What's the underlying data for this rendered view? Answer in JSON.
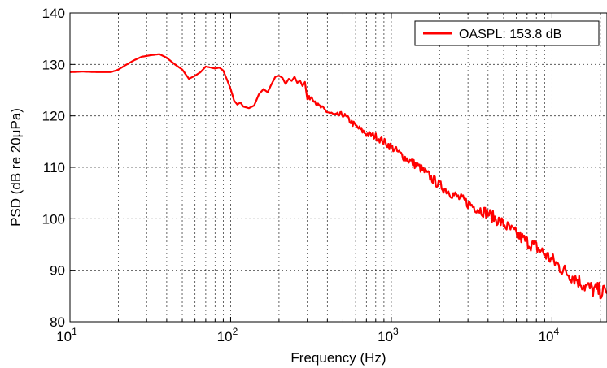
{
  "chart_data": {
    "type": "line",
    "xscale": "log",
    "xlim": [
      10,
      22000
    ],
    "ylim": [
      80,
      140
    ],
    "grid": true,
    "xlabel": "Frequency (Hz)",
    "ylabel": "PSD (dB re 20μPa)",
    "xticks": [
      10,
      100,
      1000,
      10000
    ],
    "xtick_labels": [
      {
        "base": "10",
        "exp": "1"
      },
      {
        "base": "10",
        "exp": "2"
      },
      {
        "base": "10",
        "exp": "3"
      },
      {
        "base": "10",
        "exp": "4"
      }
    ],
    "yticks": [
      80,
      90,
      100,
      110,
      120,
      130,
      140
    ],
    "ytick_labels": [
      "80",
      "90",
      "100",
      "110",
      "120",
      "130",
      "140"
    ],
    "legend_position": "top-right",
    "series": [
      {
        "name": "OASPL: 153.8 dB",
        "color": "#ff0000",
        "x": [
          10,
          12,
          15,
          18,
          20,
          22,
          25,
          28,
          32,
          36,
          40,
          45,
          50,
          55,
          60,
          65,
          70,
          75,
          80,
          85,
          90,
          95,
          100,
          105,
          110,
          115,
          120,
          130,
          140,
          150,
          160,
          170,
          180,
          190,
          200,
          210,
          220,
          230,
          240,
          250,
          260,
          270,
          280,
          290,
          300,
          320,
          350,
          400,
          450,
          500,
          600,
          700,
          800,
          1000,
          1200,
          1500,
          2000,
          2500,
          3000,
          4000,
          5000,
          6000,
          7000,
          8000,
          10000,
          12000,
          14000,
          16000,
          18000,
          20000,
          22000
        ],
        "y": [
          128.5,
          128.6,
          128.5,
          128.5,
          129.0,
          129.8,
          130.8,
          131.5,
          131.8,
          132.0,
          131.3,
          130.0,
          129.0,
          127.2,
          127.8,
          128.5,
          129.6,
          129.4,
          129.2,
          129.4,
          128.8,
          127.0,
          125.2,
          123.0,
          122.2,
          122.6,
          121.8,
          121.5,
          122.0,
          124.2,
          125.2,
          124.6,
          126.2,
          127.6,
          127.8,
          127.4,
          126.2,
          127.2,
          126.8,
          127.6,
          126.4,
          126.9,
          125.8,
          126.6,
          123.2,
          123.8,
          122.0,
          120.8,
          120.0,
          120.3,
          118.0,
          116.5,
          116.0,
          114.0,
          112.0,
          110.0,
          106.5,
          104.5,
          103.0,
          101.0,
          99.0,
          97.0,
          95.5,
          94.5,
          92.0,
          89.8,
          88.5,
          87.0,
          86.2,
          86.0,
          85.5
        ]
      }
    ]
  }
}
